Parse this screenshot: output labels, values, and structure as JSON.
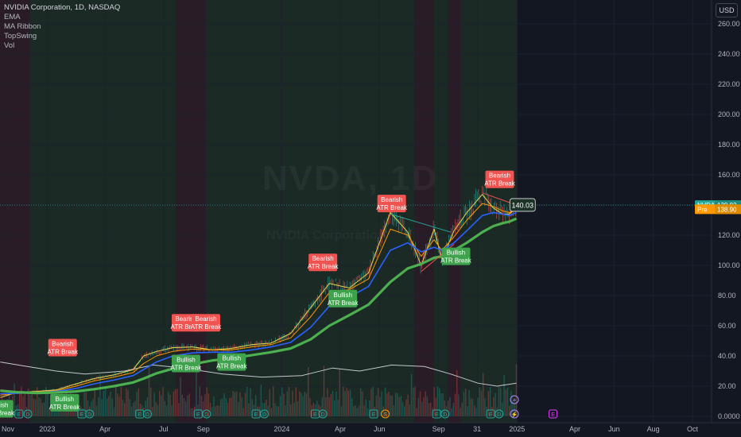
{
  "header": {
    "title": "NVIDIA Corporation, 1D, NASDAQ",
    "indicators": [
      "EMA",
      "MA Ribbon",
      "TopSwing",
      "Vol"
    ],
    "currency": "USD"
  },
  "watermark": {
    "symbol": "NVDA, 1D",
    "name": "NVIDIA Corporation"
  },
  "chart_data": {
    "type": "line",
    "y_ticks": [
      "260.00",
      "240.00",
      "220.00",
      "200.00",
      "180.00",
      "160.00",
      "140.00",
      "120.00",
      "100.00",
      "80.00",
      "60.00",
      "40.00",
      "20.00",
      "0.0000"
    ],
    "ylim": [
      0,
      266
    ],
    "x_ticks": [
      {
        "label": "Nov",
        "date": "2022-11-01"
      },
      {
        "label": "2023",
        "date": "2023-01-01"
      },
      {
        "label": "Apr",
        "date": "2023-04-01"
      },
      {
        "label": "Jul",
        "date": "2023-07-01"
      },
      {
        "label": "Sep",
        "date": "2023-09-01"
      },
      {
        "label": "2024",
        "date": "2024-01-01"
      },
      {
        "label": "Apr",
        "date": "2024-04-01"
      },
      {
        "label": "Jun",
        "date": "2024-06-01"
      },
      {
        "label": "Sep",
        "date": "2024-09-01"
      },
      {
        "label": "31",
        "date": "2024-10-31"
      },
      {
        "label": "2025",
        "date": "2025-01-01"
      },
      {
        "label": "Apr",
        "date": "2025-04-01"
      },
      {
        "label": "Jun",
        "date": "2025-06-01"
      },
      {
        "label": "Aug",
        "date": "2025-08-01"
      },
      {
        "label": "Oct",
        "date": "2025-10-01"
      }
    ],
    "series": [
      {
        "values": [
          [
            "2022-10-20",
            12.5
          ],
          [
            "2022-11-15",
            16
          ],
          [
            "2022-12-15",
            16.5
          ],
          [
            "2023-01-15",
            17.5
          ],
          [
            "2023-02-15",
            21.5
          ],
          [
            "2023-03-15",
            25
          ],
          [
            "2023-04-15",
            27.5
          ],
          [
            "2023-05-15",
            31
          ],
          [
            "2023-05-31",
            40
          ],
          [
            "2023-06-20",
            43
          ],
          [
            "2023-07-15",
            45.5
          ],
          [
            "2023-08-15",
            46
          ],
          [
            "2023-09-15",
            44
          ],
          [
            "2023-10-15",
            45
          ],
          [
            "2023-11-15",
            47.5
          ],
          [
            "2023-12-15",
            48.5
          ],
          [
            "2024-01-15",
            55
          ],
          [
            "2024-02-15",
            72
          ],
          [
            "2024-03-15",
            88
          ],
          [
            "2024-04-15",
            85
          ],
          [
            "2024-05-15",
            95
          ],
          [
            "2024-06-18",
            135
          ],
          [
            "2024-07-15",
            122
          ],
          [
            "2024-08-05",
            100
          ],
          [
            "2024-08-25",
            124
          ],
          [
            "2024-09-06",
            104
          ],
          [
            "2024-09-25",
            123
          ],
          [
            "2024-10-15",
            135
          ],
          [
            "2024-11-08",
            147
          ],
          [
            "2024-11-25",
            138
          ],
          [
            "2024-12-10",
            134
          ],
          [
            "2024-12-20",
            134
          ],
          [
            "2024-12-31",
            138
          ]
        ],
        "color": "#e8d44d"
      },
      {
        "values": [
          [
            "2022-10-20",
            14
          ],
          [
            "2022-11-15",
            15.5
          ],
          [
            "2022-12-15",
            16.2
          ],
          [
            "2023-01-15",
            17
          ],
          [
            "2023-02-15",
            20
          ],
          [
            "2023-03-15",
            23.5
          ],
          [
            "2023-04-15",
            26
          ],
          [
            "2023-05-15",
            29
          ],
          [
            "2023-05-31",
            35
          ],
          [
            "2023-06-20",
            40
          ],
          [
            "2023-07-15",
            43
          ],
          [
            "2023-08-15",
            44.5
          ],
          [
            "2023-09-15",
            44
          ],
          [
            "2023-10-15",
            44
          ],
          [
            "2023-11-15",
            46
          ],
          [
            "2023-12-15",
            47.5
          ],
          [
            "2024-01-15",
            52
          ],
          [
            "2024-02-15",
            66
          ],
          [
            "2024-03-15",
            82
          ],
          [
            "2024-04-15",
            84
          ],
          [
            "2024-05-15",
            91
          ],
          [
            "2024-06-18",
            124
          ],
          [
            "2024-07-15",
            120
          ],
          [
            "2024-08-05",
            106
          ],
          [
            "2024-08-25",
            117
          ],
          [
            "2024-09-06",
            110
          ],
          [
            "2024-09-25",
            119
          ],
          [
            "2024-10-15",
            130
          ],
          [
            "2024-11-08",
            141
          ],
          [
            "2024-11-25",
            139
          ],
          [
            "2024-12-10",
            136
          ],
          [
            "2024-12-20",
            135
          ],
          [
            "2024-12-31",
            137
          ]
        ],
        "color": "#ff9800"
      },
      {
        "values": [
          [
            "2022-10-20",
            15
          ],
          [
            "2022-11-15",
            15.2
          ],
          [
            "2022-12-15",
            15.8
          ],
          [
            "2023-01-15",
            16.5
          ],
          [
            "2023-02-15",
            18.5
          ],
          [
            "2023-03-15",
            21.5
          ],
          [
            "2023-04-15",
            24
          ],
          [
            "2023-05-15",
            27
          ],
          [
            "2023-05-31",
            31
          ],
          [
            "2023-06-20",
            36
          ],
          [
            "2023-07-15",
            40
          ],
          [
            "2023-08-15",
            42
          ],
          [
            "2023-09-15",
            42.5
          ],
          [
            "2023-10-15",
            42.5
          ],
          [
            "2023-11-15",
            44
          ],
          [
            "2023-12-15",
            46
          ],
          [
            "2024-01-15",
            49
          ],
          [
            "2024-02-15",
            59
          ],
          [
            "2024-03-15",
            73
          ],
          [
            "2024-04-15",
            79
          ],
          [
            "2024-05-15",
            86
          ],
          [
            "2024-06-18",
            110
          ],
          [
            "2024-07-15",
            115
          ],
          [
            "2024-08-05",
            109
          ],
          [
            "2024-08-25",
            112
          ],
          [
            "2024-09-06",
            110
          ],
          [
            "2024-09-25",
            115
          ],
          [
            "2024-10-15",
            123
          ],
          [
            "2024-11-08",
            133
          ],
          [
            "2024-11-25",
            135
          ],
          [
            "2024-12-10",
            134
          ],
          [
            "2024-12-20",
            133
          ],
          [
            "2024-12-31",
            135
          ]
        ],
        "color": "#2962ff"
      },
      {
        "values": [
          [
            "2022-10-20",
            17
          ],
          [
            "2022-11-15",
            16
          ],
          [
            "2022-12-15",
            15.5
          ],
          [
            "2023-01-15",
            15.8
          ],
          [
            "2023-02-15",
            16.5
          ],
          [
            "2023-03-15",
            18
          ],
          [
            "2023-04-15",
            20
          ],
          [
            "2023-05-15",
            22.5
          ],
          [
            "2023-05-31",
            25
          ],
          [
            "2023-06-20",
            28.5
          ],
          [
            "2023-07-15",
            31.5
          ],
          [
            "2023-08-15",
            34.5
          ],
          [
            "2023-09-15",
            37
          ],
          [
            "2023-10-15",
            38.5
          ],
          [
            "2023-11-15",
            40.5
          ],
          [
            "2023-12-15",
            42.5
          ],
          [
            "2024-01-15",
            45
          ],
          [
            "2024-02-15",
            51
          ],
          [
            "2024-03-15",
            60
          ],
          [
            "2024-04-15",
            67
          ],
          [
            "2024-05-15",
            74
          ],
          [
            "2024-06-18",
            89
          ],
          [
            "2024-07-15",
            98
          ],
          [
            "2024-08-05",
            101
          ],
          [
            "2024-08-25",
            105
          ],
          [
            "2024-09-06",
            106
          ],
          [
            "2024-09-25",
            110
          ],
          [
            "2024-10-15",
            115
          ],
          [
            "2024-11-08",
            122
          ],
          [
            "2024-11-25",
            126
          ],
          [
            "2024-12-10",
            128
          ],
          [
            "2024-12-20",
            129
          ],
          [
            "2024-12-31",
            131
          ]
        ],
        "color": "#4caf50"
      }
    ],
    "volume_line": [
      [
        "2022-10-20",
        36
      ],
      [
        "2022-12-01",
        33
      ],
      [
        "2023-01-15",
        30
      ],
      [
        "2023-03-01",
        28
      ],
      [
        "2023-05-01",
        30
      ],
      [
        "2023-06-15",
        34
      ],
      [
        "2023-08-01",
        32
      ],
      [
        "2023-10-01",
        28
      ],
      [
        "2023-12-01",
        26
      ],
      [
        "2024-02-01",
        27
      ],
      [
        "2024-03-20",
        32
      ],
      [
        "2024-05-01",
        30
      ],
      [
        "2024-06-20",
        34
      ],
      [
        "2024-08-10",
        33
      ],
      [
        "2024-09-20",
        28
      ],
      [
        "2024-11-01",
        22
      ],
      [
        "2024-12-01",
        20
      ],
      [
        "2024-12-31",
        22
      ]
    ],
    "annotations": [
      {
        "line1": "Bearish",
        "line2": "ATR Break",
        "kind": "bearish",
        "date": "2023-01-25",
        "price": 45.5
      },
      {
        "line1": "Bearish",
        "line2": "ATR Break",
        "kind": "bearish",
        "date": "2023-08-05",
        "price": 62
      },
      {
        "line1": "Bearish",
        "line2": "ATR Break",
        "kind": "bearish",
        "date": "2023-09-05",
        "price": 62
      },
      {
        "line1": "Bearish",
        "line2": "ATR Break",
        "kind": "bearish",
        "date": "2024-03-05",
        "price": 102
      },
      {
        "line1": "Bearish",
        "line2": "ATR Break",
        "kind": "bearish",
        "date": "2024-06-20",
        "price": 141
      },
      {
        "line1": "Bearish",
        "line2": "ATR Break",
        "kind": "bearish",
        "date": "2024-12-05",
        "price": 157
      },
      {
        "line1": "Bullish",
        "line2": "ATR Break",
        "kind": "bullish",
        "date": "2022-10-18",
        "price": 5
      },
      {
        "line1": "Bullish",
        "line2": "ATR Break",
        "kind": "bullish",
        "date": "2023-01-28",
        "price": 9
      },
      {
        "line1": "Bullish",
        "line2": "ATR Break",
        "kind": "bullish",
        "date": "2023-08-05",
        "price": 35
      },
      {
        "line1": "Bullish",
        "line2": "ATR Break",
        "kind": "bullish",
        "date": "2023-10-15",
        "price": 36
      },
      {
        "line1": "Bullish",
        "line2": "ATR Break",
        "kind": "bullish",
        "date": "2024-04-05",
        "price": 78
      },
      {
        "line1": "Bullish",
        "line2": "ATR Break",
        "kind": "bullish",
        "date": "2024-09-28",
        "price": 106
      }
    ],
    "event_markers": [
      {
        "label": "E",
        "date": "2022-11-18"
      },
      {
        "label": "D",
        "date": "2022-12-02"
      },
      {
        "label": "E",
        "date": "2023-02-24"
      },
      {
        "label": "D",
        "date": "2023-03-08"
      },
      {
        "label": "E",
        "date": "2023-05-25"
      },
      {
        "label": "D",
        "date": "2023-06-06"
      },
      {
        "label": "E",
        "date": "2023-08-24"
      },
      {
        "label": "D",
        "date": "2023-09-06"
      },
      {
        "label": "E",
        "date": "2023-11-22"
      },
      {
        "label": "D",
        "date": "2023-12-05"
      },
      {
        "label": "E",
        "date": "2024-02-22"
      },
      {
        "label": "D",
        "date": "2024-03-05"
      },
      {
        "label": "E",
        "date": "2024-05-23"
      },
      {
        "label": "S",
        "date": "2024-06-10",
        "color": "#ff9800"
      },
      {
        "label": "E",
        "date": "2024-08-29"
      },
      {
        "label": "D",
        "date": "2024-09-11"
      },
      {
        "label": "E",
        "date": "2024-11-21"
      },
      {
        "label": "D",
        "date": "2024-12-04"
      },
      {
        "label": "E",
        "date": "2025-02-26",
        "color": "#e040fb"
      }
    ],
    "price_labels": [
      {
        "label": "NVDA",
        "value": "139.93",
        "price": 139.93,
        "color": "#26a69a"
      },
      {
        "label": "Pre",
        "value": "138.90",
        "price": 137.2,
        "color": "#ff9800"
      }
    ],
    "callout": {
      "value": "140.03",
      "date": "2025-01-22",
      "price": 140.03
    }
  }
}
